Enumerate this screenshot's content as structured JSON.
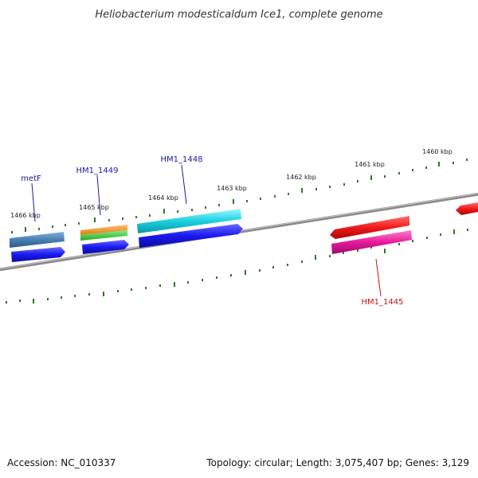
{
  "title": "Heliobacterium modesticaldum Ice1, complete genome",
  "footer": {
    "accession": "Accession: NC_010337",
    "topology": "Topology: circular; Length: 3,075,407 bp; Genes: 3,129"
  },
  "ticks": [
    {
      "label": "1466 kbp"
    },
    {
      "label": "1465 kbp"
    },
    {
      "label": "1464 kbp"
    },
    {
      "label": "1463 kbp"
    },
    {
      "label": "1462 kbp"
    },
    {
      "label": "1461 kbp"
    },
    {
      "label": "1460 kbp"
    }
  ],
  "gene_labels": [
    {
      "text": "metF",
      "color": "#1a1a9c"
    },
    {
      "text": "HM1_1449",
      "color": "#1a1a9c"
    },
    {
      "text": "HM1_1448",
      "color": "#1a1a9c"
    },
    {
      "text": "HM1_1445",
      "color": "#c01818"
    }
  ],
  "colors": {
    "backbone": "#8a8a8a",
    "tick": "#2a7a2a",
    "cds_forward": "#1a1af0",
    "metF": "#4a7fb0",
    "HM1_1449_a": "#f08c1a",
    "HM1_1449_b": "#3cc03c",
    "HM1_1448": "#1ad0e0",
    "HM1_1445": "#e81a9c",
    "HM1_1446": "#f01a1a"
  }
}
